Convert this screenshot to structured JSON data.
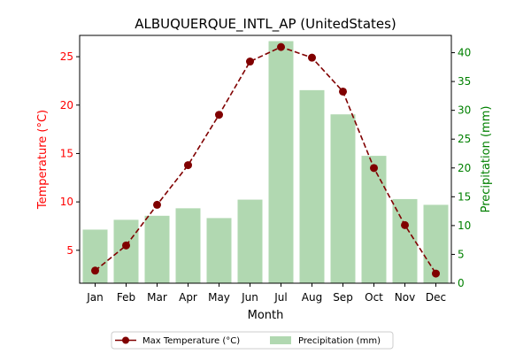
{
  "chart_data": {
    "type": "bar+line",
    "title": "ALBUQUERQUE_INTL_AP (UnitedStates)",
    "xlabel": "Month",
    "ylabel_left": "Temperature (°C)",
    "ylabel_right": "Precipitation (mm)",
    "categories": [
      "Jan",
      "Feb",
      "Mar",
      "Apr",
      "May",
      "Jun",
      "Jul",
      "Aug",
      "Sep",
      "Oct",
      "Nov",
      "Dec"
    ],
    "left_axis": {
      "range": [
        1.6,
        27.2
      ],
      "ticks": [
        5,
        10,
        15,
        20,
        25
      ]
    },
    "right_axis": {
      "range": [
        0,
        43
      ],
      "ticks": [
        0,
        5,
        10,
        15,
        20,
        25,
        30,
        35,
        40
      ]
    },
    "grid": false,
    "legend_placement": "bottom-center",
    "series": [
      {
        "name": "Max Temperature (°C)",
        "kind": "line",
        "axis": "left",
        "style": "dashed",
        "marker": "circle",
        "color": "#800000",
        "values": [
          2.9,
          5.5,
          9.7,
          13.8,
          19.0,
          24.5,
          26.0,
          24.9,
          21.4,
          13.5,
          7.6,
          2.6
        ]
      },
      {
        "name": "Precipitation (mm)",
        "kind": "bar",
        "axis": "right",
        "color": "#b1d8b1",
        "values": [
          9.3,
          11.0,
          11.7,
          13.0,
          11.3,
          14.5,
          42.0,
          33.5,
          29.3,
          22.1,
          14.6,
          13.6
        ]
      }
    ],
    "axis_colors": {
      "left": "#ff0000",
      "right": "#008000"
    }
  }
}
